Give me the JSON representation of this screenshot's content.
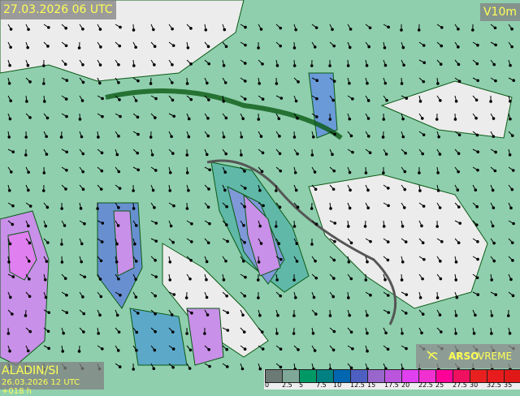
{
  "header": {
    "valid_time": "27.03.2026 06 UTC",
    "parameter": "V10m"
  },
  "model": {
    "name": "ALADIN/SI",
    "run": "26.03.2026 12 UTC +018 h"
  },
  "brand": {
    "strong": "ARSO",
    "light": "VREME",
    "icon": "arso-logo-icon"
  },
  "legend": {
    "unit_values": [
      "0",
      "2.5",
      "5",
      "7.5",
      "10",
      "12.5",
      "15",
      "17.5",
      "20",
      "22.5",
      "25",
      "27.5",
      "30",
      "32.5",
      "35"
    ],
    "colors": [
      "#6b7a74",
      "#7fa898",
      "#009966",
      "#008080",
      "#0066b0",
      "#4d5fc0",
      "#9966cc",
      "#bb55dd",
      "#e040f0",
      "#f030d0",
      "#ff0099",
      "#f01060",
      "#e82020",
      "#e81c1c",
      "#e01818"
    ]
  },
  "map": {
    "land_color": "#e8e8e8",
    "contour_color": "#0a5a14",
    "arrow_color": "#000000"
  }
}
